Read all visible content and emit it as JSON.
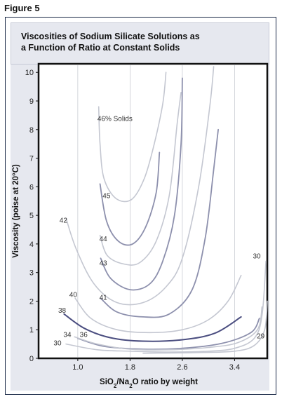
{
  "figure_label": "Figure 5",
  "chart_data": {
    "type": "line",
    "title_lines": [
      "Viscosities of Sodium Silicate Solutions as",
      "a Function of Ratio at Constant Solids"
    ],
    "xlabel_parts": [
      "SiO",
      "2",
      "/Na",
      "2",
      "O ratio by weight"
    ],
    "ylabel": "Viscosity (poise at 20°C)",
    "xlim": [
      0.4,
      3.9
    ],
    "ylim": [
      0,
      10.3
    ],
    "x_ticks": [
      1.0,
      1.8,
      2.6,
      3.4
    ],
    "x_tick_labels": [
      "1.0",
      "1.8",
      "2.6",
      "3.4"
    ],
    "y_ticks": [
      0,
      1,
      2,
      3,
      4,
      5,
      6,
      7,
      8,
      9,
      10
    ],
    "y_tick_labels": [
      "0",
      "1",
      "2",
      "3",
      "4",
      "5",
      "6",
      "7",
      "8",
      "9",
      "10"
    ],
    "grid": "vertical",
    "colors": {
      "light": "#c4c7d1",
      "mid": "#8d90ad",
      "dark": "#4b4e80",
      "panel": "#e6e8ef",
      "frame": "#1b2a48"
    },
    "series": [
      {
        "label": "46% Solids",
        "shade": "light",
        "label_at": [
          1.3,
          8.3
        ],
        "points": [
          [
            1.32,
            8.8
          ],
          [
            1.34,
            7.5
          ],
          [
            1.4,
            6.3
          ],
          [
            1.58,
            5.6
          ],
          [
            1.82,
            5.55
          ],
          [
            2.02,
            6.3
          ],
          [
            2.17,
            7.5
          ],
          [
            2.3,
            8.9
          ],
          [
            2.35,
            10.0
          ]
        ]
      },
      {
        "label": "45",
        "shade": "mid",
        "label_at": [
          1.38,
          5.6
        ],
        "points": [
          [
            1.34,
            6.1
          ],
          [
            1.44,
            4.8
          ],
          [
            1.62,
            4.1
          ],
          [
            1.84,
            4.0
          ],
          [
            2.04,
            4.6
          ],
          [
            2.2,
            5.8
          ],
          [
            2.25,
            7.2
          ]
        ]
      },
      {
        "label": "44",
        "shade": "light",
        "label_at": [
          1.33,
          4.1
        ],
        "points": [
          [
            1.34,
            4.3
          ],
          [
            1.45,
            3.6
          ],
          [
            1.7,
            3.3
          ],
          [
            1.95,
            3.35
          ],
          [
            2.2,
            4.1
          ],
          [
            2.4,
            5.7
          ],
          [
            2.52,
            8.2
          ],
          [
            2.58,
            9.3
          ]
        ]
      },
      {
        "label": "43",
        "shade": "mid",
        "label_at": [
          1.33,
          3.25
        ],
        "points": [
          [
            1.35,
            3.5
          ],
          [
            1.5,
            2.8
          ],
          [
            1.8,
            2.4
          ],
          [
            2.1,
            2.6
          ],
          [
            2.3,
            3.4
          ],
          [
            2.48,
            5.0
          ],
          [
            2.58,
            7.5
          ],
          [
            2.6,
            9.8
          ]
        ]
      },
      {
        "label": "42",
        "shade": "light",
        "label_at": [
          0.72,
          4.75
        ],
        "points": [
          [
            0.82,
            4.9
          ],
          [
            0.98,
            3.8
          ],
          [
            1.25,
            2.6
          ],
          [
            1.6,
            1.95
          ],
          [
            2.0,
            1.95
          ],
          [
            2.35,
            2.5
          ],
          [
            2.6,
            3.5
          ],
          [
            2.85,
            6.0
          ],
          [
            3.02,
            8.8
          ],
          [
            3.08,
            10.2
          ]
        ]
      },
      {
        "label": "41",
        "shade": "mid",
        "label_at": [
          1.33,
          2.05
        ],
        "points": [
          [
            1.35,
            2.1
          ],
          [
            1.6,
            1.62
          ],
          [
            2.0,
            1.45
          ],
          [
            2.4,
            1.55
          ],
          [
            2.75,
            2.4
          ],
          [
            2.95,
            4.2
          ],
          [
            3.08,
            6.6
          ],
          [
            3.15,
            8.0
          ]
        ]
      },
      {
        "label": "40",
        "shade": "light",
        "label_at": [
          0.87,
          2.15
        ],
        "points": [
          [
            0.96,
            2.1
          ],
          [
            1.2,
            1.4
          ],
          [
            1.6,
            1.0
          ],
          [
            2.1,
            0.9
          ],
          [
            2.6,
            1.0
          ],
          [
            3.0,
            1.35
          ],
          [
            3.3,
            2.0
          ],
          [
            3.5,
            2.9
          ]
        ]
      },
      {
        "label": "38",
        "shade": "dark",
        "label_at": [
          0.7,
          1.6
        ],
        "points": [
          [
            0.79,
            1.55
          ],
          [
            1.1,
            1.05
          ],
          [
            1.5,
            0.72
          ],
          [
            2.0,
            0.6
          ],
          [
            2.6,
            0.65
          ],
          [
            3.1,
            0.88
          ],
          [
            3.5,
            1.45
          ]
        ]
      },
      {
        "label": "36",
        "shade": "mid",
        "label_at": [
          1.03,
          0.75
        ],
        "points": [
          [
            1.0,
            0.7
          ],
          [
            1.4,
            0.42
          ],
          [
            2.0,
            0.32
          ],
          [
            2.6,
            0.35
          ],
          [
            3.2,
            0.52
          ],
          [
            3.65,
            0.9
          ],
          [
            3.78,
            1.4
          ]
        ]
      },
      {
        "label": "34",
        "shade": "light",
        "label_at": [
          0.78,
          0.75
        ],
        "points": [
          [
            0.95,
            0.75
          ],
          [
            1.3,
            0.5
          ],
          [
            1.8,
            0.32
          ],
          [
            2.4,
            0.3
          ],
          [
            3.0,
            0.38
          ],
          [
            3.45,
            0.55
          ],
          [
            3.75,
            1.0
          ],
          [
            3.82,
            1.8
          ]
        ]
      },
      {
        "label": "30",
        "shade": "light",
        "label_at": [
          0.63,
          0.45
        ],
        "points": [
          [
            0.82,
            0.5
          ],
          [
            1.3,
            0.3
          ],
          [
            1.8,
            0.25
          ],
          [
            2.4,
            0.22
          ],
          [
            3.0,
            0.25
          ],
          [
            3.4,
            0.35
          ],
          [
            3.7,
            0.7
          ],
          [
            3.82,
            1.5
          ],
          [
            3.88,
            3.4
          ]
        ]
      },
      {
        "label": "30",
        "shade": "light",
        "label_at": [
          3.68,
          3.5
        ],
        "points": []
      },
      {
        "label": "29",
        "shade": "light",
        "label_at": [
          3.74,
          0.7
        ],
        "points": [
          [
            2.0,
            0.18
          ],
          [
            2.8,
            0.2
          ],
          [
            3.4,
            0.25
          ],
          [
            3.7,
            0.45
          ],
          [
            3.86,
            1.0
          ],
          [
            3.9,
            2.0
          ]
        ]
      }
    ]
  }
}
